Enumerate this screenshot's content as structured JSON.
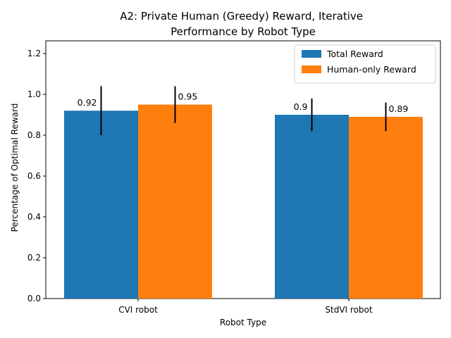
{
  "chart_data": {
    "type": "bar",
    "title": "A2: Private Human (Greedy) Reward, Iterative\nPerformance by Robot Type",
    "xlabel": "Robot Type",
    "ylabel": "Percentage of Optimal Reward",
    "ylim": [
      0,
      1.2
    ],
    "yticks": [
      "0.0",
      "0.2",
      "0.4",
      "0.6",
      "0.8",
      "1.0",
      "1.2"
    ],
    "categories": [
      "CVI robot",
      "StdVI robot"
    ],
    "series": [
      {
        "name": "Total Reward",
        "color": "#1f77b4",
        "values": [
          0.92,
          0.9
        ],
        "error": [
          0.12,
          0.08
        ],
        "labels": [
          "0.92",
          "0.9"
        ]
      },
      {
        "name": "Human-only Reward",
        "color": "#ff7f0e",
        "values": [
          0.95,
          0.89
        ],
        "error": [
          0.09,
          0.07
        ],
        "labels": [
          "0.95",
          "0.89"
        ]
      }
    ],
    "legend_position": "top-right",
    "grid": false
  }
}
